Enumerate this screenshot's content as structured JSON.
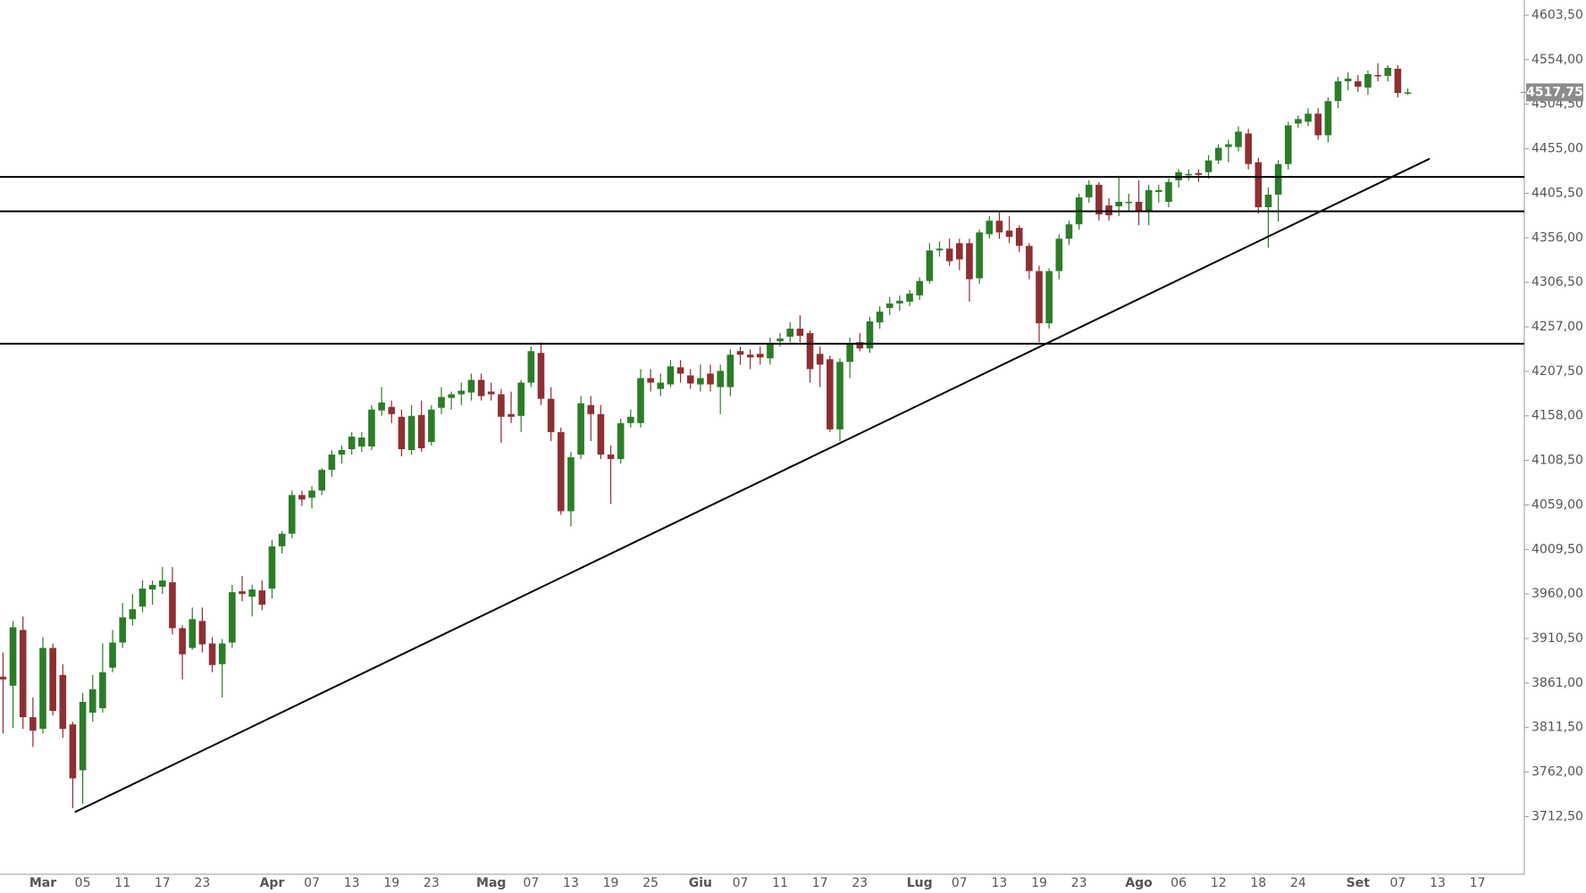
{
  "chart_data": {
    "type": "candlestick",
    "categories": [
      null,
      null,
      null,
      null,
      "Mar",
      null,
      null,
      null,
      "05",
      null,
      null,
      null,
      "11",
      null,
      null,
      null,
      "17",
      null,
      null,
      null,
      "23",
      null,
      null,
      null,
      null,
      null,
      null,
      "Apr",
      null,
      null,
      null,
      "07",
      null,
      null,
      null,
      "13",
      null,
      null,
      null,
      "19",
      null,
      null,
      null,
      "23",
      null,
      null,
      null,
      null,
      null,
      "Mag",
      null,
      null,
      null,
      "07",
      null,
      null,
      null,
      "13",
      null,
      null,
      null,
      "19",
      null,
      null,
      null,
      "25",
      null,
      null,
      null,
      null,
      "Giu",
      null,
      null,
      null,
      "07",
      null,
      null,
      null,
      "11",
      null,
      null,
      null,
      "17",
      null,
      null,
      null,
      "23",
      null,
      null,
      null,
      null,
      null,
      "Lug",
      null,
      null,
      null,
      "07",
      null,
      null,
      null,
      "13",
      null,
      null,
      null,
      "19",
      null,
      null,
      null,
      "23",
      null,
      null,
      null,
      null,
      null,
      "Ago",
      null,
      null,
      null,
      "06",
      null,
      null,
      null,
      "12",
      null,
      null,
      null,
      "18",
      null,
      null,
      null,
      "24",
      null,
      null,
      null,
      null,
      null,
      "Set",
      null,
      null,
      null,
      "07",
      null,
      null,
      null,
      "13",
      null,
      null,
      null,
      "17"
    ],
    "open": [
      3868,
      3858,
      3920,
      3823,
      3810,
      3900,
      3870,
      3815,
      3764,
      3828,
      3833,
      3878,
      3906,
      3932,
      3946,
      3965,
      3968,
      3973,
      3922,
      3900,
      3930,
      3905,
      3882,
      3906,
      3963,
      3957,
      3964,
      3966,
      4013,
      4027,
      4070,
      4067,
      4075,
      4098,
      4115,
      4121,
      4124,
      4124,
      4164,
      4168,
      4157,
      4120,
      4159,
      4129,
      4167,
      4178,
      4182,
      4184,
      4198,
      4185,
      4182,
      4160,
      4158,
      4195,
      4228,
      4177,
      4140,
      4052,
      4115,
      4170,
      4160,
      4115,
      4110,
      4150,
      4150,
      4200,
      4188,
      4193,
      4212,
      4203,
      4193,
      4205,
      4190,
      4190,
      4230,
      4226,
      4227,
      4222,
      4241,
      4246,
      4255,
      4250,
      4227,
      4221,
      4143,
      4218,
      4240,
      4233,
      4262,
      4278,
      4283,
      4285,
      4292,
      4308,
      4342,
      4344,
      4350,
      4350,
      4311,
      4360,
      4375,
      4364,
      4367,
      4347,
      4319,
      4261,
      4319,
      4355,
      4371,
      4401,
      4415,
      4392,
      4391,
      4395,
      4396,
      4385,
      4407,
      4396,
      4420,
      4426,
      4428,
      4429,
      4442,
      4457,
      4457,
      4472,
      4440,
      4390,
      4404,
      4438,
      4483,
      4485,
      4494,
      4470,
      4508,
      4530,
      4530,
      4523,
      4537,
      4536,
      4544,
      4517.5,
      null,
      null,
      null,
      null,
      null,
      null,
      null
    ],
    "high": [
      3895,
      3930,
      3935,
      3845,
      3912,
      3905,
      3882,
      3818,
      3850,
      3870,
      3905,
      3920,
      3950,
      3960,
      3975,
      3975,
      3990,
      3990,
      3925,
      3945,
      3945,
      3912,
      3910,
      3970,
      3980,
      3970,
      3975,
      4020,
      4030,
      4075,
      4075,
      4080,
      4100,
      4120,
      4125,
      4140,
      4140,
      4170,
      4190,
      4175,
      4165,
      4170,
      4175,
      4170,
      4190,
      4185,
      4195,
      4205,
      4205,
      4195,
      4188,
      4185,
      4198,
      4235,
      4240,
      4190,
      4145,
      4118,
      4180,
      4180,
      4170,
      4125,
      4155,
      4165,
      4210,
      4210,
      4205,
      4220,
      4220,
      4210,
      4215,
      4215,
      4215,
      4232,
      4235,
      4232,
      4235,
      4245,
      4250,
      4262,
      4270,
      4253,
      4235,
      4225,
      4222,
      4245,
      4250,
      4268,
      4280,
      4290,
      4292,
      4298,
      4312,
      4350,
      4352,
      4355,
      4355,
      4355,
      4365,
      4380,
      4385,
      4380,
      4370,
      4350,
      4325,
      4322,
      4360,
      4375,
      4405,
      4420,
      4418,
      4400,
      4425,
      4405,
      4420,
      4415,
      4415,
      4422,
      4432,
      4432,
      4432,
      4448,
      4460,
      4465,
      4480,
      4477,
      4445,
      4412,
      4442,
      4485,
      4492,
      4500,
      4500,
      4512,
      4535,
      4540,
      4537,
      4542,
      4550,
      4548,
      4548,
      4522,
      null,
      null,
      null,
      null,
      null,
      null,
      null
    ],
    "low": [
      3805,
      3811,
      3810,
      3790,
      3805,
      3825,
      3800,
      3722,
      3727,
      3818,
      3828,
      3873,
      3900,
      3925,
      3940,
      3948,
      3960,
      3915,
      3865,
      3898,
      3895,
      3873,
      3845,
      3900,
      3952,
      3935,
      3942,
      3955,
      4005,
      4022,
      4058,
      4055,
      4070,
      4090,
      4105,
      4115,
      4118,
      4120,
      4158,
      4150,
      4113,
      4115,
      4118,
      4125,
      4160,
      4165,
      4170,
      4175,
      4175,
      4175,
      4128,
      4150,
      4140,
      4190,
      4170,
      4130,
      4048,
      4035,
      4110,
      4130,
      4110,
      4060,
      4105,
      4145,
      4145,
      4185,
      4180,
      4190,
      4195,
      4188,
      4185,
      4185,
      4160,
      4180,
      4215,
      4210,
      4215,
      4215,
      4235,
      4240,
      4240,
      4195,
      4190,
      4140,
      4130,
      4200,
      4230,
      4228,
      4255,
      4270,
      4275,
      4280,
      4287,
      4305,
      4335,
      4325,
      4320,
      4285,
      4305,
      4355,
      4355,
      4350,
      4340,
      4310,
      4240,
      4255,
      4310,
      4348,
      4365,
      4395,
      4375,
      4375,
      4380,
      4385,
      4370,
      4370,
      4395,
      4390,
      4412,
      4420,
      4418,
      4422,
      4438,
      4440,
      4452,
      4432,
      4383,
      4345,
      4374,
      4432,
      4478,
      4480,
      4465,
      4462,
      4500,
      4520,
      4518,
      4515,
      4530,
      4530,
      4512,
      4515,
      null,
      null,
      null,
      null,
      null,
      null,
      null
    ],
    "close": [
      3865,
      3923,
      3823,
      3808,
      3900,
      3830,
      3810,
      3755,
      3840,
      3854,
      3873,
      3906,
      3934,
      3943,
      3966,
      3970,
      3975,
      3922,
      3893,
      3932,
      3904,
      3881,
      3905,
      3962,
      3960,
      3965,
      3948,
      4013,
      4027,
      4070,
      4065,
      4075,
      4098,
      4115,
      4120,
      4135,
      4134,
      4165,
      4173,
      4160,
      4121,
      4158,
      4122,
      4165,
      4179,
      4182,
      4186,
      4198,
      4180,
      4182,
      4157,
      4157,
      4195,
      4230,
      4177,
      4140,
      4052,
      4112,
      4172,
      4160,
      4115,
      4110,
      4150,
      4157,
      4200,
      4195,
      4195,
      4213,
      4205,
      4194,
      4200,
      4193,
      4208,
      4226,
      4226,
      4223,
      4223,
      4238,
      4244,
      4255,
      4247,
      4210,
      4215,
      4143,
      4218,
      4238,
      4233,
      4263,
      4274,
      4283,
      4286,
      4294,
      4308,
      4342,
      4344,
      4330,
      4332,
      4310,
      4362,
      4375,
      4362,
      4357,
      4347,
      4319,
      4261,
      4319,
      4355,
      4371,
      4401,
      4415,
      4382,
      4381,
      4396,
      4396,
      4385,
      4409,
      4409,
      4418,
      4429,
      4427,
      4426,
      4442,
      4456,
      4460,
      4474,
      4438,
      4390,
      4404,
      4438,
      4481,
      4488,
      4494,
      4470,
      4508,
      4530,
      4533,
      4524,
      4538,
      4536,
      4545,
      4517,
      4517.75,
      null,
      null,
      null,
      null,
      null,
      null,
      null
    ],
    "up_color": "#2b7d27",
    "down_color": "#8e2f33",
    "ylim": [
      3648.4,
      4620.4
    ],
    "yticks": [
      {
        "value": 3712.5,
        "label": "3712,50"
      },
      {
        "value": 3762,
        "label": "3762,00"
      },
      {
        "value": 3811.5,
        "label": "3811,50"
      },
      {
        "value": 3861,
        "label": "3861,00"
      },
      {
        "value": 3910.5,
        "label": "3910,50"
      },
      {
        "value": 3960,
        "label": "3960,00"
      },
      {
        "value": 4009.5,
        "label": "4009,50"
      },
      {
        "value": 4059,
        "label": "4059,00"
      },
      {
        "value": 4108.5,
        "label": "4108,50"
      },
      {
        "value": 4158,
        "label": "4158,00"
      },
      {
        "value": 4207.5,
        "label": "4207,50"
      },
      {
        "value": 4257,
        "label": "4257,00"
      },
      {
        "value": 4306.5,
        "label": "4306,50"
      },
      {
        "value": 4356,
        "label": "4356,00"
      },
      {
        "value": 4405.5,
        "label": "4405,50"
      },
      {
        "value": 4455,
        "label": "4455,00"
      },
      {
        "value": 4504.5,
        "label": "4504,50"
      },
      {
        "value": 4554,
        "label": "4554,00"
      },
      {
        "value": 4603.5,
        "label": "4603,50"
      }
    ],
    "hlines": [
      4423.7,
      4385.5,
      4238.3
    ],
    "trendline": {
      "x": [
        7.2,
        143.2
      ],
      "y": [
        3717.4,
        4444
      ]
    },
    "last_price": {
      "value": 4517.75,
      "label": "4517,75"
    }
  }
}
